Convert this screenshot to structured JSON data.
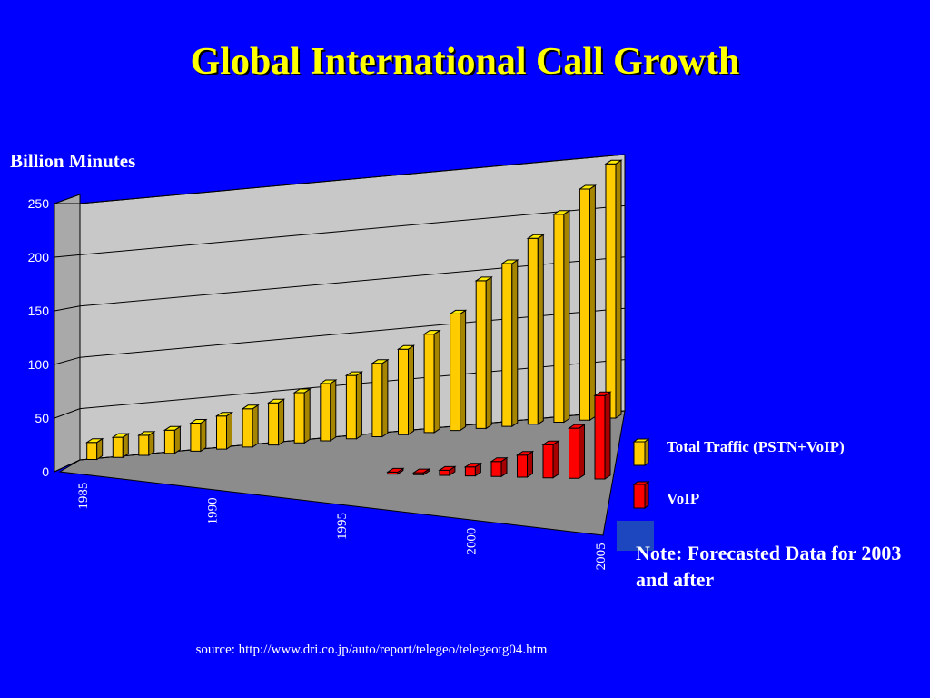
{
  "slide": {
    "title": "Global International Call Growth",
    "unit_label": "Billion Minutes",
    "note": "Note: Forecasted Data for 2003 and after",
    "source": "source: http://www.dri.co.jp/auto/report/telegeo/telegeotg04.htm"
  },
  "legend": [
    {
      "label": "Total Traffic (PSTN+VoIP)",
      "color": "#ffcc00"
    },
    {
      "label": "VoIP",
      "color": "#ff0000"
    }
  ],
  "chart_data": {
    "type": "bar",
    "style": "3d-clustered",
    "x": [
      1985,
      1986,
      1987,
      1988,
      1989,
      1990,
      1991,
      1992,
      1993,
      1994,
      1995,
      1996,
      1997,
      1998,
      1999,
      2000,
      2001,
      2002,
      2003,
      2004,
      2005
    ],
    "x_tick_labels": [
      "1985",
      "1990",
      "1995",
      "2000",
      "2005"
    ],
    "y_tick_labels": [
      "0",
      "50",
      "100",
      "150",
      "200",
      "250"
    ],
    "ylim": [
      0,
      250
    ],
    "ylabel": "Billion Minutes",
    "grid": true,
    "legend_position": "right",
    "series": [
      {
        "name": "Total Traffic (PSTN+VoIP)",
        "color": "#ffcc00",
        "values": [
          17,
          20,
          20,
          23,
          28,
          33,
          38,
          42,
          50,
          57,
          63,
          73,
          85,
          98,
          116,
          147,
          162,
          185,
          207,
          230,
          253
        ]
      },
      {
        "name": "VoIP",
        "color": "#ff0000",
        "values": [
          null,
          null,
          null,
          null,
          null,
          null,
          null,
          null,
          null,
          null,
          null,
          null,
          2,
          2,
          5,
          9,
          15,
          22,
          33,
          50,
          83
        ]
      }
    ]
  }
}
